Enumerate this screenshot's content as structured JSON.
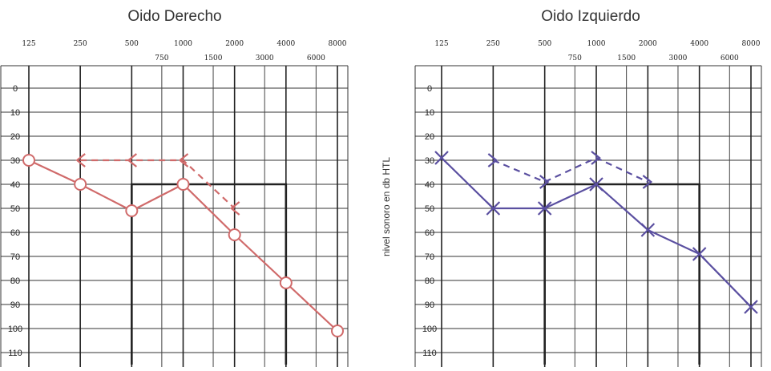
{
  "chart_data": [
    {
      "type": "line",
      "title": "Oido Derecho",
      "x_major": [
        125,
        250,
        500,
        1000,
        2000,
        4000,
        8000
      ],
      "x_minor": [
        750,
        1500,
        3000,
        6000
      ],
      "y_ticks": [
        0,
        10,
        20,
        30,
        40,
        50,
        60,
        70,
        80,
        90,
        100,
        110
      ],
      "ylim": [
        -10,
        115
      ],
      "color": "#d06a6a",
      "series": [
        {
          "marker": "circle",
          "style": "solid",
          "x": [
            125,
            250,
            500,
            1000,
            2000,
            4000,
            8000
          ],
          "y": [
            30,
            40,
            51,
            40,
            61,
            81,
            101
          ]
        },
        {
          "marker": "bracket-left",
          "style": "dashed",
          "x": [
            250,
            500,
            1000,
            2000
          ],
          "y": [
            30,
            30,
            30,
            50
          ]
        }
      ],
      "reference_box": {
        "x": [
          500,
          4000
        ],
        "y": [
          40,
          115
        ]
      }
    },
    {
      "type": "line",
      "title": "Oido Izquierdo",
      "ylabel": "nivel sonoro en db HTL",
      "x_major": [
        125,
        250,
        500,
        1000,
        2000,
        4000,
        8000
      ],
      "x_minor": [
        750,
        1500,
        3000,
        6000
      ],
      "y_ticks": [
        0,
        10,
        20,
        30,
        40,
        50,
        60,
        70,
        80,
        90,
        100,
        110
      ],
      "ylim": [
        -10,
        115
      ],
      "color": "#5a4fa0",
      "series": [
        {
          "marker": "x",
          "style": "solid",
          "x": [
            125,
            250,
            500,
            1000,
            2000,
            4000,
            8000
          ],
          "y": [
            29,
            50,
            50,
            40,
            59,
            69,
            91
          ]
        },
        {
          "marker": "bracket-right",
          "style": "dashed",
          "x": [
            250,
            500,
            1000,
            2000
          ],
          "y": [
            30,
            39,
            29,
            39
          ]
        }
      ],
      "reference_box": {
        "x": [
          500,
          4000
        ],
        "y": [
          40,
          115
        ]
      }
    }
  ]
}
